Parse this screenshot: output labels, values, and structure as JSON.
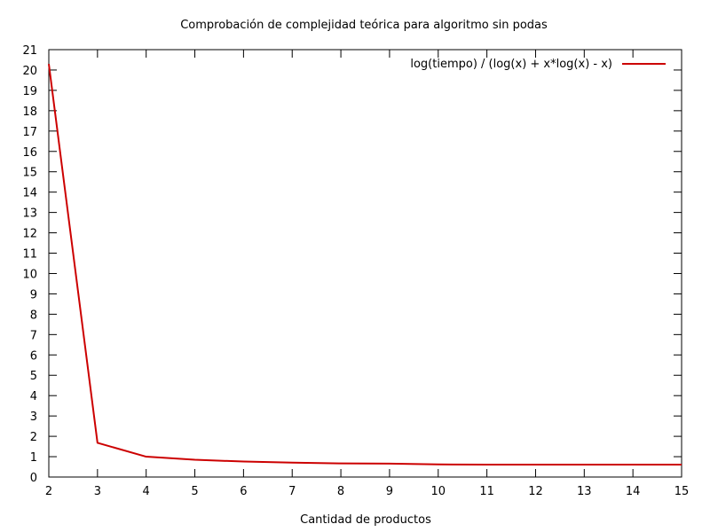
{
  "chart_data": {
    "type": "line",
    "title": "Comprobación de complejidad teórica para algoritmo sin podas",
    "xlabel": "Cantidad de productos",
    "ylabel": "",
    "xlim": [
      2,
      15
    ],
    "ylim": [
      0,
      21
    ],
    "x_ticks": [
      "2",
      "3",
      "4",
      "5",
      "6",
      "7",
      "8",
      "9",
      "10",
      "11",
      "12",
      "13",
      "14",
      "15"
    ],
    "y_ticks": [
      "0",
      "1",
      "2",
      "3",
      "4",
      "5",
      "6",
      "7",
      "8",
      "9",
      "10",
      "11",
      "12",
      "13",
      "14",
      "15",
      "16",
      "17",
      "18",
      "19",
      "20",
      "21"
    ],
    "grid": false,
    "legend_position": "top-right",
    "series": [
      {
        "name": "log(tiempo) / (log(x) + x*log(x) - x)",
        "color": "#cc0000",
        "x": [
          2,
          3,
          4,
          5,
          6,
          7,
          8,
          9,
          10,
          11,
          12,
          13,
          14,
          15
        ],
        "values": [
          20.3,
          1.68,
          1.0,
          0.85,
          0.76,
          0.71,
          0.67,
          0.66,
          0.62,
          0.61,
          0.61,
          0.61,
          0.61,
          0.61
        ]
      }
    ]
  }
}
